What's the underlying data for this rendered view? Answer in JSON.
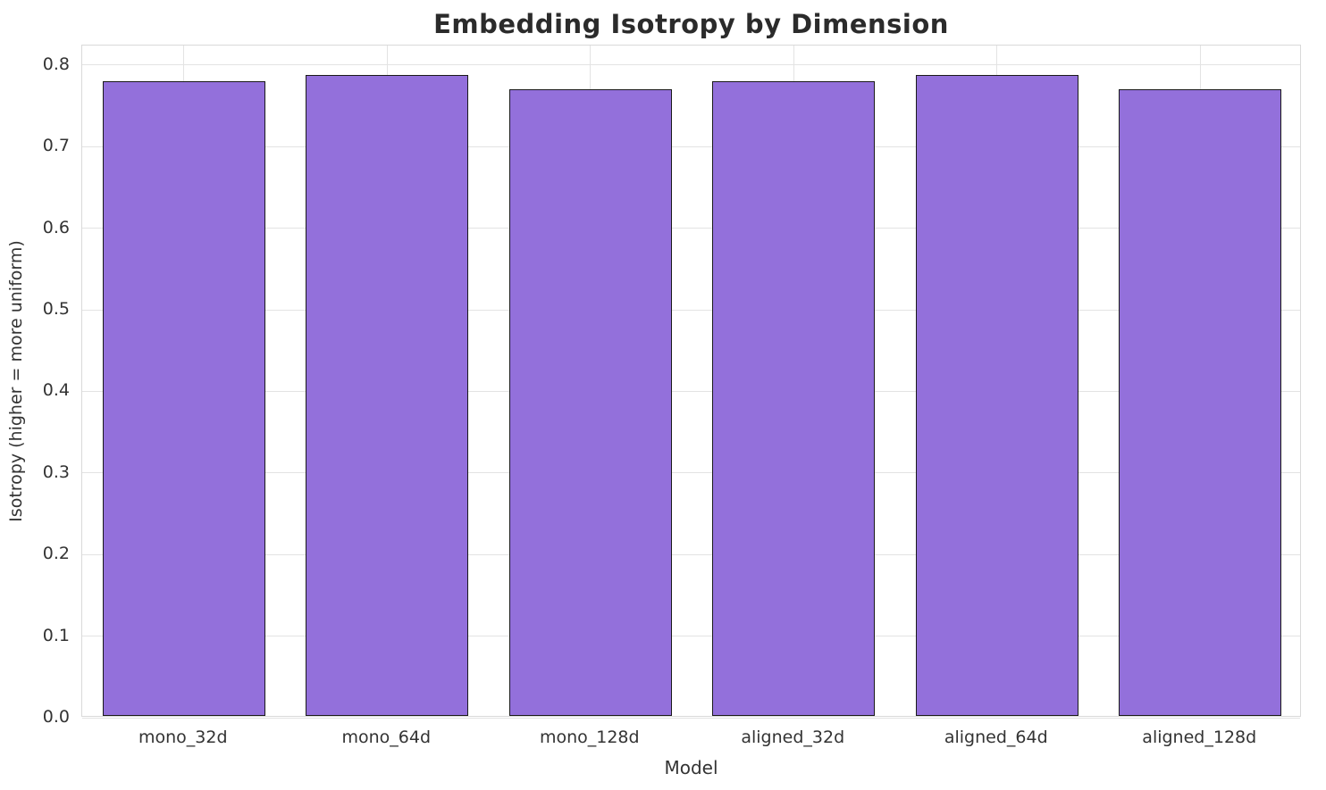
{
  "chart_data": {
    "type": "bar",
    "title": "Embedding Isotropy by Dimension",
    "xlabel": "Model",
    "ylabel": "Isotropy (higher = more uniform)",
    "categories": [
      "mono_32d",
      "mono_64d",
      "mono_128d",
      "aligned_32d",
      "aligned_64d",
      "aligned_128d"
    ],
    "values": [
      0.778,
      0.786,
      0.768,
      0.778,
      0.786,
      0.768
    ],
    "ylim": [
      0,
      0.824
    ],
    "yticks": [
      0.0,
      0.1,
      0.2,
      0.3,
      0.4,
      0.5,
      0.6,
      0.7,
      0.8
    ],
    "ytick_labels": [
      "0.0",
      "0.1",
      "0.2",
      "0.3",
      "0.4",
      "0.5",
      "0.6",
      "0.7",
      "0.8"
    ],
    "grid": true,
    "legend": "none",
    "bar_color": "#9370db",
    "bar_edge_color": "#1a1a1a",
    "grid_color": "#e3e3e3",
    "title_color": "#2b2b2b",
    "tick_color": "#333333"
  }
}
